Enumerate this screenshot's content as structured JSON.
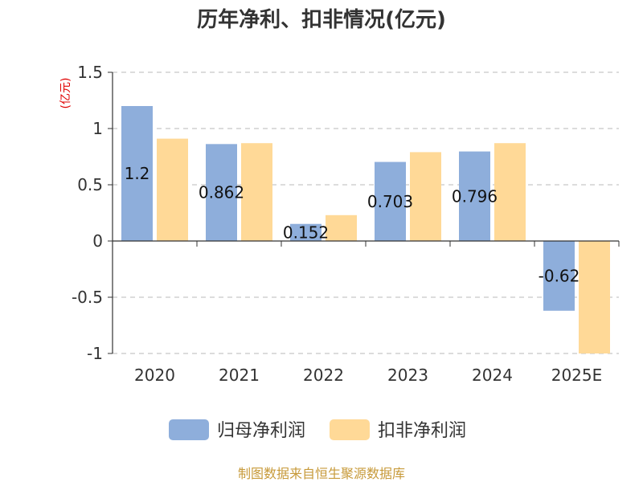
{
  "chart_data": {
    "type": "bar",
    "title": "历年净利、扣非情况(亿元)",
    "ylabel": "(亿元)",
    "categories": [
      "2020",
      "2021",
      "2022",
      "2023",
      "2024",
      "2025E"
    ],
    "series": [
      {
        "name": "归母净利润",
        "values": [
          1.2,
          0.862,
          0.152,
          0.703,
          0.796,
          -0.62
        ],
        "data_labels": [
          "1.2",
          "0.862",
          "0.152",
          "0.703",
          "0.796",
          "-0.62"
        ],
        "color": "#8eaedb"
      },
      {
        "name": "扣非净利润",
        "values": [
          0.91,
          0.87,
          0.23,
          0.79,
          0.87,
          -1.0
        ],
        "color": "#ffd997"
      }
    ],
    "ylim": [
      -1,
      1.5
    ],
    "yticks": [
      "-1",
      "-0.5",
      "0",
      "0.5",
      "1",
      "1.5"
    ],
    "grid": true,
    "legend_position": "bottom"
  },
  "footer": {
    "source": "制图数据来自恒生聚源数据库"
  }
}
